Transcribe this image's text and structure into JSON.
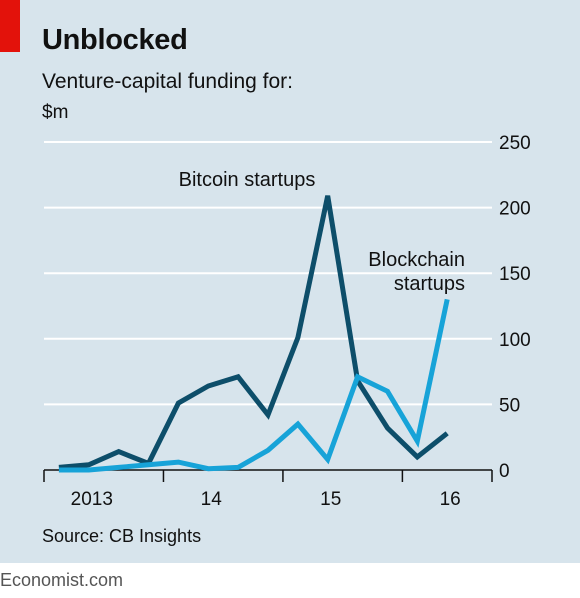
{
  "header": {
    "title": "Unblocked",
    "subtitle": "Venture-capital funding for:",
    "unit": "$m"
  },
  "footer": {
    "source": "Source: CB Insights",
    "brand": "Economist.com"
  },
  "colors": {
    "background": "#d7e4ec",
    "accent_red": "#e3120b",
    "bitcoin": "#0d4e6a",
    "blockchain": "#17a3d8",
    "gridline": "#ffffff"
  },
  "chart_data": {
    "type": "line",
    "ylim": [
      0,
      250
    ],
    "yticks": [
      0,
      50,
      100,
      150,
      200,
      250
    ],
    "ytick_labels": [
      "0",
      "50",
      "100",
      "150",
      "200",
      "250"
    ],
    "x_axis_labels": [
      {
        "label": "2013",
        "x": 2013.15
      },
      {
        "label": "14",
        "x": 2014.15
      },
      {
        "label": "15",
        "x": 2015.15
      },
      {
        "label": "16",
        "x": 2016.15
      }
    ],
    "x_ticks": [
      2012.75,
      2013.75,
      2014.75,
      2015.75
    ],
    "xlim": [
      2012.75,
      2016.5
    ],
    "grid": true,
    "series": [
      {
        "name": "Bitcoin startups",
        "label_lines": [
          "Bitcoin startups"
        ],
        "color_key": "bitcoin",
        "x": [
          2012.875,
          2013.125,
          2013.375,
          2013.625,
          2013.875,
          2014.125,
          2014.375,
          2014.625,
          2014.875,
          2015.125,
          2015.375,
          2015.625,
          2015.875,
          2016.125
        ],
        "y": [
          2,
          4,
          14,
          5,
          51,
          64,
          71,
          42,
          101,
          209,
          68,
          32,
          10,
          28
        ]
      },
      {
        "name": "Blockchain startups",
        "label_lines": [
          "Blockchain",
          "startups"
        ],
        "color_key": "blockchain",
        "x": [
          2012.875,
          2013.125,
          2013.375,
          2013.625,
          2013.875,
          2014.125,
          2014.375,
          2014.625,
          2014.875,
          2015.125,
          2015.375,
          2015.625,
          2015.875,
          2016.125
        ],
        "y": [
          0,
          0,
          2,
          4,
          6,
          1,
          2,
          15,
          35,
          8,
          71,
          60,
          22,
          130
        ]
      }
    ]
  }
}
